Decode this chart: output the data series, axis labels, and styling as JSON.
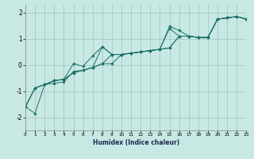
{
  "xlabel": "Humidex (Indice chaleur)",
  "background_color": "#c8e8e4",
  "grid_color": "#9dc4be",
  "line_color": "#1e7268",
  "xlim": [
    0,
    23
  ],
  "ylim": [
    -2.5,
    2.3
  ],
  "xticks": [
    0,
    1,
    2,
    3,
    4,
    5,
    6,
    7,
    8,
    9,
    10,
    11,
    12,
    13,
    14,
    15,
    16,
    17,
    18,
    19,
    20,
    21,
    22,
    23
  ],
  "yticks": [
    -2,
    -1,
    0,
    1,
    2
  ],
  "x": [
    0,
    1,
    2,
    3,
    4,
    5,
    6,
    7,
    8,
    9,
    10,
    11,
    12,
    13,
    14,
    15,
    16,
    17,
    18,
    19,
    20,
    21,
    22,
    23
  ],
  "series": [
    [
      -1.6,
      -1.85,
      -0.75,
      -0.7,
      -0.65,
      -0.25,
      -0.2,
      -0.1,
      0.7,
      0.4,
      0.4,
      0.45,
      0.5,
      0.55,
      0.6,
      1.4,
      1.1,
      1.1,
      1.05,
      1.05,
      1.75,
      1.8,
      1.85,
      1.75
    ],
    [
      -1.6,
      -0.88,
      -0.75,
      -0.6,
      -0.55,
      -0.3,
      -0.2,
      -0.1,
      0.05,
      0.05,
      0.4,
      0.45,
      0.5,
      0.55,
      0.6,
      0.65,
      1.1,
      1.1,
      1.05,
      1.05,
      1.75,
      1.8,
      1.85,
      1.75
    ],
    [
      -1.6,
      -0.88,
      -0.75,
      -0.6,
      -0.55,
      0.05,
      -0.05,
      0.35,
      0.7,
      0.4,
      0.4,
      0.45,
      0.5,
      0.55,
      0.6,
      1.48,
      1.32,
      1.1,
      1.05,
      1.05,
      1.75,
      1.8,
      1.85,
      1.75
    ],
    [
      -1.6,
      -0.88,
      -0.75,
      -0.6,
      -0.55,
      -0.3,
      -0.2,
      -0.1,
      0.05,
      0.4,
      0.4,
      0.45,
      0.5,
      0.55,
      0.6,
      0.65,
      1.1,
      1.1,
      1.05,
      1.05,
      1.75,
      1.8,
      1.85,
      1.75
    ]
  ]
}
